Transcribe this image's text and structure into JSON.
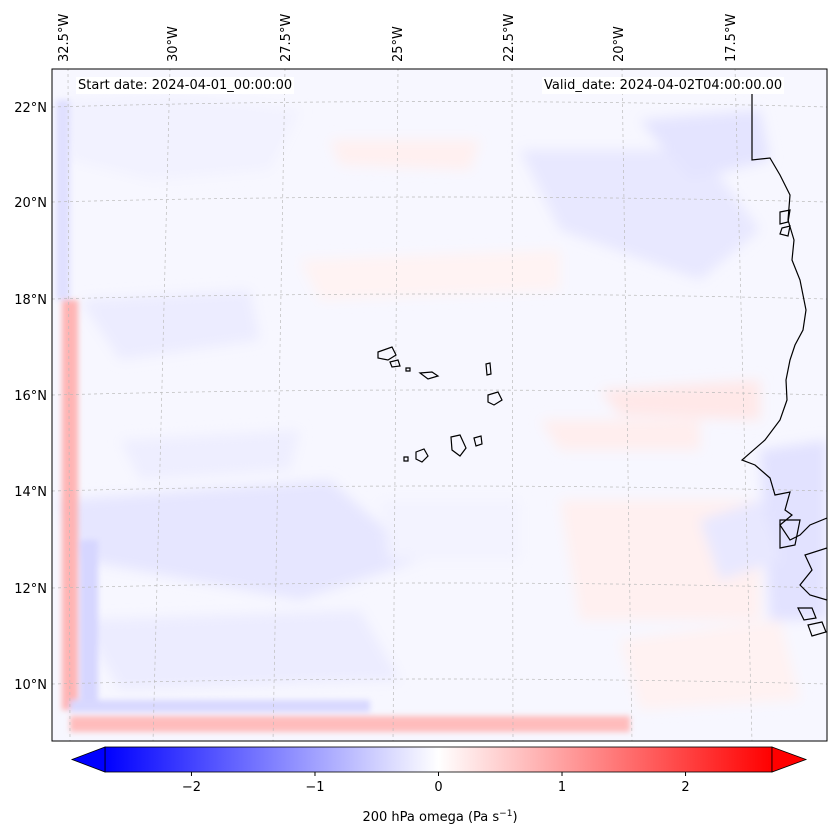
{
  "header": {
    "start_date": "Start date: 2024-04-01_00:00:00",
    "valid_date": "Valid_date: 2024-04-02T04:00:00.00"
  },
  "map": {
    "projection": "Lambert conformal",
    "longitude_labels": [
      "32.5°W",
      "30°W",
      "27.5°W",
      "25°W",
      "22.5°W",
      "20°W",
      "17.5°W"
    ],
    "latitude_labels": [
      "22°N",
      "20°N",
      "18°N",
      "16°N",
      "14°N",
      "12°N",
      "10°N"
    ],
    "gridlines": "dashed-grey",
    "coastline_color": "#000000",
    "features": [
      "Cape Verde islands",
      "West African coast (Mauritania, Senegal, Gambia, Guinea-Bissau, Guinea)"
    ]
  },
  "colorbar": {
    "field": "200 hPa omega",
    "label": "200 hPa omega (Pa s",
    "label_exponent": "−1",
    "label_close": ")",
    "min": -2.7,
    "max": 2.7,
    "extend": "both",
    "colormap": "bwr",
    "ticks": [
      "−2",
      "−1",
      "0",
      "1",
      "2"
    ],
    "tick_values": [
      -2,
      -1,
      0,
      1,
      2
    ],
    "color_low": "#0000ff",
    "color_mid": "#ffffff",
    "color_high": "#ff0000"
  }
}
